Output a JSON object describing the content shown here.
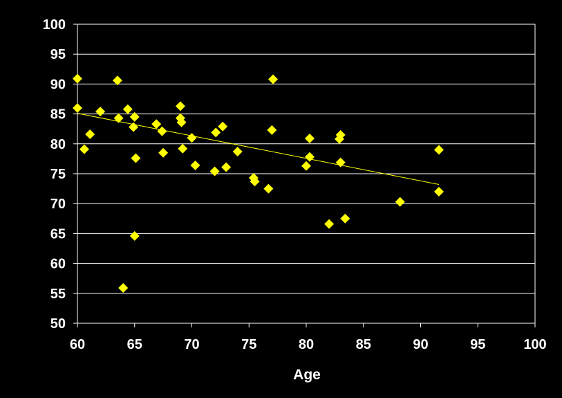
{
  "chart_data": {
    "type": "scatter",
    "title": "",
    "xlabel": "Age",
    "ylabel": "",
    "xlim": [
      60,
      100
    ],
    "ylim": [
      50,
      100
    ],
    "x_ticks": [
      60,
      65,
      70,
      75,
      80,
      85,
      90,
      95,
      100
    ],
    "y_ticks": [
      50,
      55,
      60,
      65,
      70,
      75,
      80,
      85,
      90,
      95,
      100
    ],
    "grid": "horizontal",
    "legend": "none",
    "background_color": "#000000",
    "grid_color": "#ffffff",
    "marker_color": "#ffff00",
    "marker_shape": "diamond",
    "trendline": {
      "type": "linear",
      "color": "#ffff00",
      "x": [
        60,
        91.6
      ],
      "y": [
        85.1,
        73.2
      ]
    },
    "series": [
      {
        "points": [
          [
            60.0,
            90.9
          ],
          [
            60.0,
            86.0
          ],
          [
            60.6,
            79.1
          ],
          [
            61.1,
            81.6
          ],
          [
            62.0,
            85.4
          ],
          [
            63.5,
            90.6
          ],
          [
            63.6,
            84.3
          ],
          [
            64.0,
            55.9
          ],
          [
            64.4,
            85.8
          ],
          [
            64.9,
            82.8
          ],
          [
            65.0,
            84.5
          ],
          [
            65.1,
            77.6
          ],
          [
            65.0,
            64.6
          ],
          [
            66.9,
            83.3
          ],
          [
            67.4,
            82.1
          ],
          [
            67.5,
            78.5
          ],
          [
            69.0,
            86.3
          ],
          [
            69.0,
            84.3
          ],
          [
            69.1,
            83.6
          ],
          [
            69.2,
            79.2
          ],
          [
            70.0,
            81.0
          ],
          [
            70.3,
            76.4
          ],
          [
            72.0,
            75.4
          ],
          [
            72.1,
            81.9
          ],
          [
            72.7,
            82.9
          ],
          [
            73.0,
            76.1
          ],
          [
            74.0,
            78.7
          ],
          [
            75.4,
            74.3
          ],
          [
            75.5,
            73.7
          ],
          [
            76.7,
            72.5
          ],
          [
            77.0,
            82.3
          ],
          [
            77.1,
            90.8
          ],
          [
            80.0,
            76.3
          ],
          [
            80.3,
            80.9
          ],
          [
            80.3,
            77.8
          ],
          [
            82.0,
            66.6
          ],
          [
            82.9,
            80.8
          ],
          [
            83.0,
            81.5
          ],
          [
            83.0,
            76.9
          ],
          [
            83.4,
            67.5
          ],
          [
            88.2,
            70.3
          ],
          [
            91.6,
            79.0
          ],
          [
            91.6,
            72.0
          ]
        ]
      }
    ]
  }
}
